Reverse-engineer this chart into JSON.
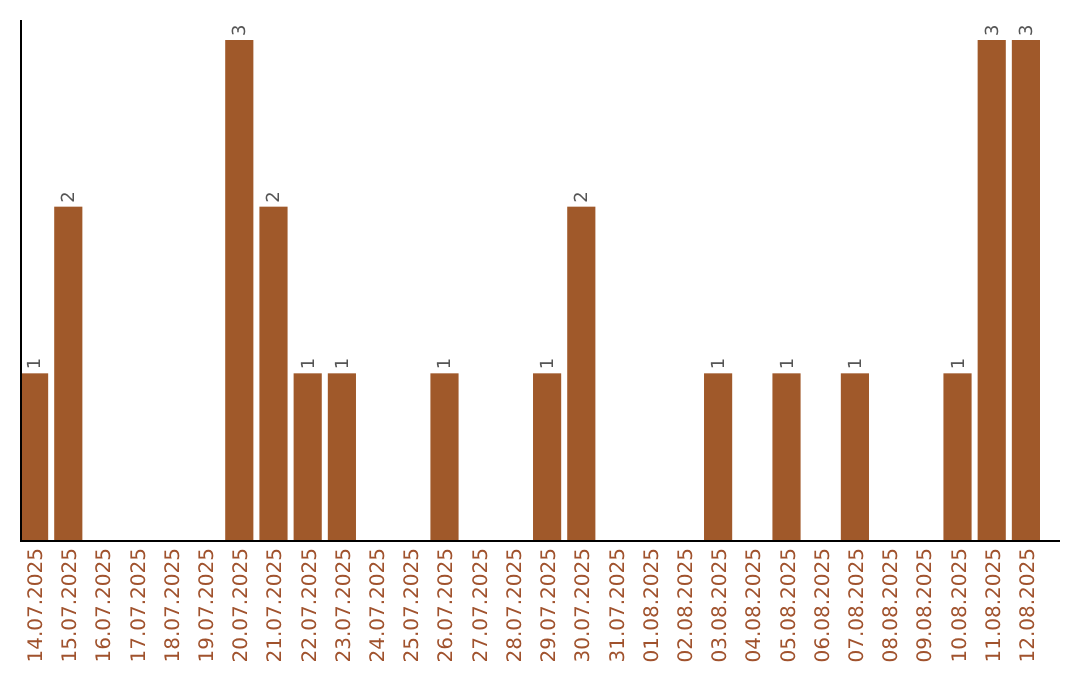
{
  "chart_data": {
    "type": "bar",
    "categories": [
      "14.07.2025",
      "15.07.2025",
      "16.07.2025",
      "17.07.2025",
      "18.07.2025",
      "19.07.2025",
      "20.07.2025",
      "21.07.2025",
      "22.07.2025",
      "23.07.2025",
      "24.07.2025",
      "25.07.2025",
      "26.07.2025",
      "27.07.2025",
      "28.07.2025",
      "29.07.2025",
      "30.07.2025",
      "31.07.2025",
      "01.08.2025",
      "02.08.2025",
      "03.08.2025",
      "04.08.2025",
      "05.08.2025",
      "06.08.2025",
      "07.08.2025",
      "08.08.2025",
      "09.08.2025",
      "10.08.2025",
      "11.08.2025",
      "12.08.2025"
    ],
    "values": [
      1,
      2,
      0,
      0,
      0,
      0,
      3,
      2,
      1,
      1,
      0,
      0,
      1,
      0,
      0,
      1,
      2,
      0,
      0,
      0,
      1,
      0,
      1,
      0,
      1,
      0,
      0,
      1,
      3,
      3
    ],
    "value_labels": [
      "1",
      "2",
      null,
      null,
      null,
      null,
      "3",
      "2",
      "1",
      "1",
      null,
      null,
      "1",
      null,
      null,
      "1",
      "2",
      null,
      null,
      null,
      "1",
      null,
      "1",
      null,
      "1",
      null,
      null,
      "1",
      "3",
      "3"
    ],
    "color": "#a0592a"
  }
}
